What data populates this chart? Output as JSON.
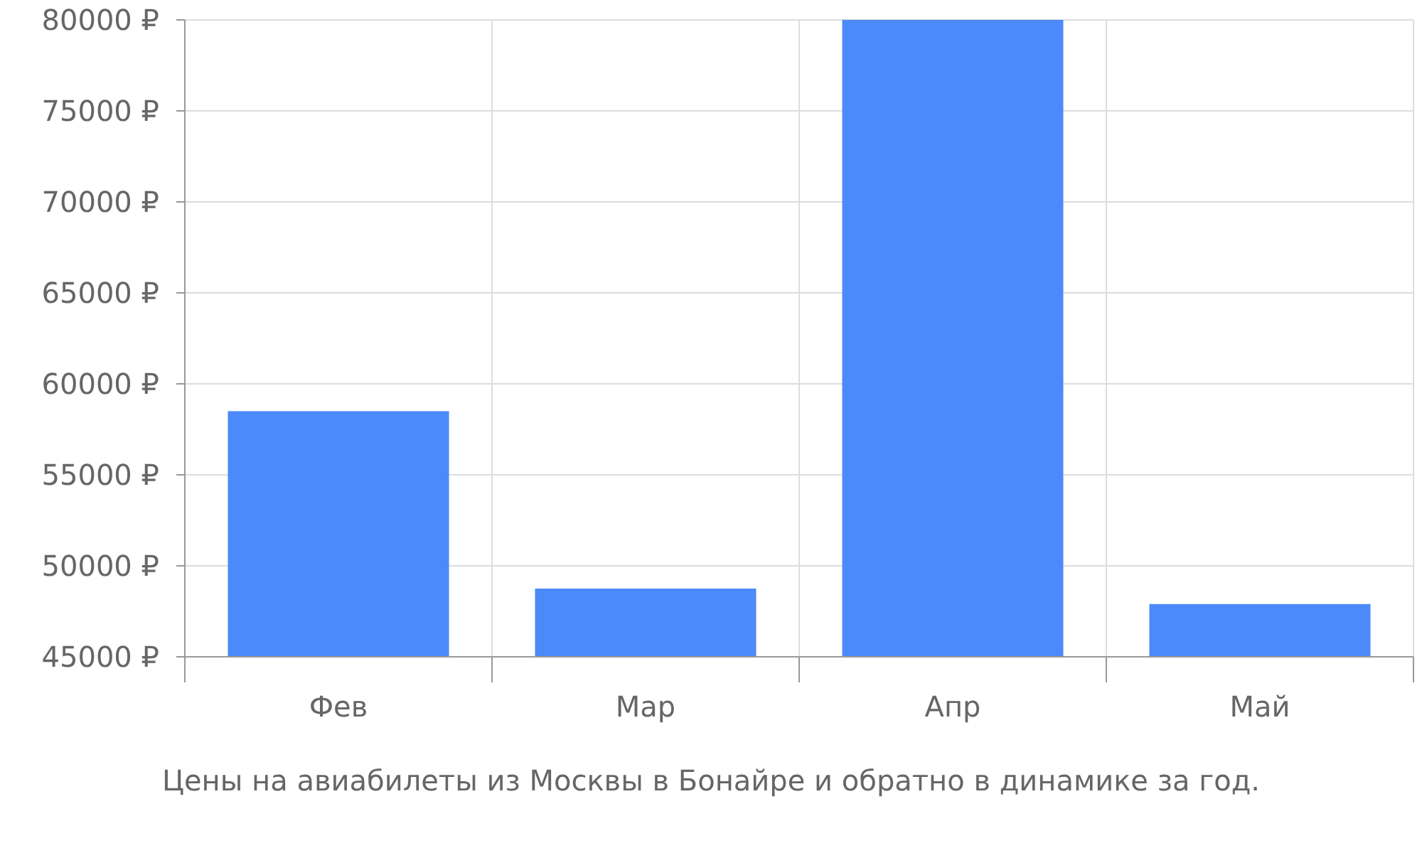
{
  "chart_data": {
    "type": "bar",
    "categories": [
      "Фев",
      "Мар",
      "Апр",
      "Май"
    ],
    "values": [
      58500,
      48750,
      80000,
      47900
    ],
    "color": "#4d8af9",
    "ylim": [
      45000,
      80000
    ],
    "yticks": [
      {
        "value": 45000,
        "label": "45000 ₽"
      },
      {
        "value": 50000,
        "label": "50000 ₽"
      },
      {
        "value": 55000,
        "label": "55000 ₽"
      },
      {
        "value": 60000,
        "label": "60000 ₽"
      },
      {
        "value": 65000,
        "label": "65000 ₽"
      },
      {
        "value": 70000,
        "label": "70000 ₽"
      },
      {
        "value": 75000,
        "label": "75000 ₽"
      },
      {
        "value": 80000,
        "label": "80000 ₽"
      }
    ],
    "grid": true,
    "annotations": [
      "Цены на авиабилеты из Москвы в Бонайре и обратно в динамике за год."
    ]
  }
}
